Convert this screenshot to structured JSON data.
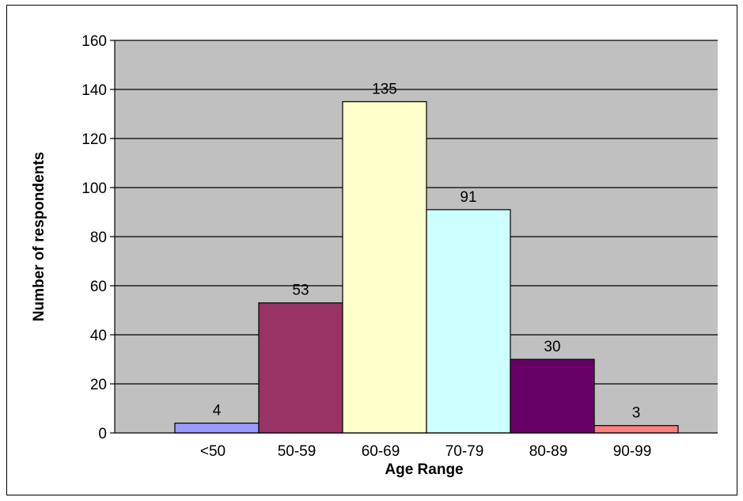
{
  "chart_data": {
    "type": "bar",
    "categories": [
      "<50",
      "50-59",
      "60-69",
      "70-79",
      "80-89",
      "90-99"
    ],
    "values": [
      4,
      53,
      135,
      91,
      30,
      3
    ],
    "colors": [
      "#9999ff",
      "#993366",
      "#ffffcc",
      "#ccffff",
      "#660066",
      "#ff8080"
    ],
    "xlabel": "Age Range",
    "ylabel": "Number of respondents",
    "ylim": [
      0,
      160
    ],
    "yticks": [
      0,
      20,
      40,
      60,
      80,
      100,
      120,
      140,
      160
    ],
    "grid": true,
    "plot_background": "#c0c0c0"
  }
}
